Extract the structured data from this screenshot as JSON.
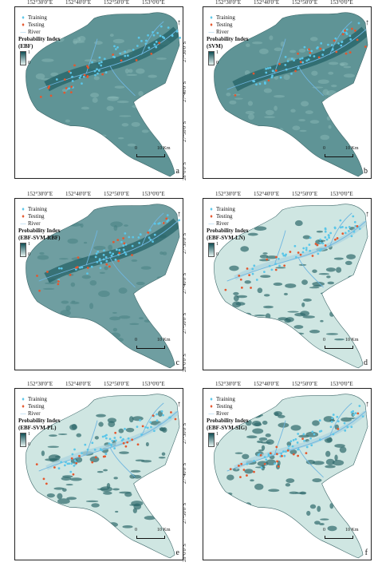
{
  "x_ticks": [
    "152°30'0\"E",
    "152°40'0\"E",
    "152°50'0\"E",
    "153°0'0\"E"
  ],
  "y_ticks": [
    "27°30'0\"S",
    "27°40'0\"S",
    "27°50'0\"S",
    "28°0'0\"S"
  ],
  "legend": {
    "training": "Training",
    "testing": "Testing",
    "river": "River",
    "prob_heading": "Probability Index",
    "ramp_high": "1",
    "ramp_low": "0"
  },
  "scale": {
    "zero": "0",
    "ten": "10 Km"
  },
  "north_symbol": "↑",
  "colors": {
    "training": "#5bc6e8",
    "testing": "#e4572e",
    "river": "#6fb6e0",
    "high": "#0f4f55",
    "low": "#e7f3f1"
  },
  "panels": [
    {
      "id": "a",
      "model": "(EBF)",
      "style": "smooth"
    },
    {
      "id": "b",
      "model": "(SVM)",
      "style": "smooth"
    },
    {
      "id": "c",
      "model": "(EBF-SVM-RBF)",
      "style": "patchy"
    },
    {
      "id": "d",
      "model": "(EBF-SVM-LN)",
      "style": "light"
    },
    {
      "id": "e",
      "model": "(EBF-SVM-PL)",
      "style": "light"
    },
    {
      "id": "f",
      "model": "(EBF-SVM-SIG)",
      "style": "light"
    }
  ]
}
